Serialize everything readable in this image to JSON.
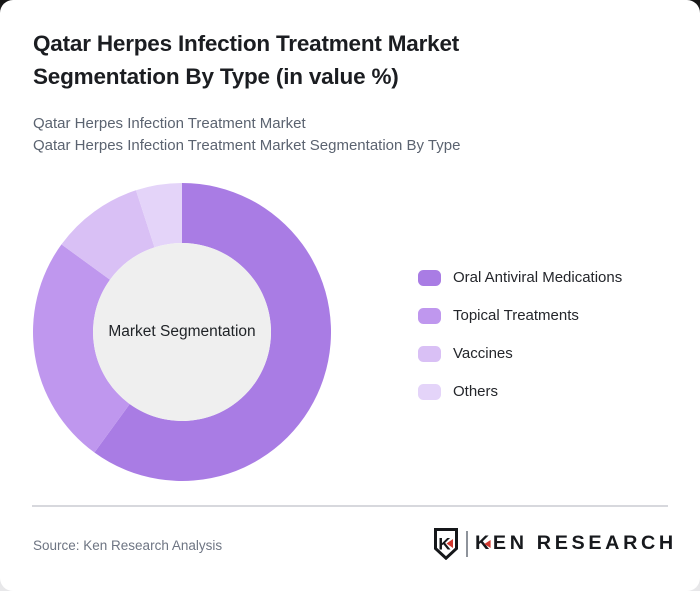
{
  "header": {
    "title": "Qatar Herpes Infection Treatment Market Segmentation By Type (in value %)",
    "subtitle_line1": "Qatar Herpes Infection Treatment Market",
    "subtitle_line2": "Qatar Herpes Infection Treatment Market Segmentation By Type"
  },
  "chart_data": {
    "type": "pie",
    "donut": true,
    "title": "Qatar Herpes Infection Treatment Market Segmentation By Type (in value %)",
    "center_label": "Market Segmentation",
    "center_fill": "#efefef",
    "start_angle_deg": 0,
    "direction": "clockwise",
    "inner_radius_ratio": 0.6,
    "legend_position": "right",
    "segments": [
      {
        "label": "Oral Antiviral Medications",
        "value_pct": 60,
        "color": "#a97ce4"
      },
      {
        "label": "Topical Treatments",
        "value_pct": 25,
        "color": "#bf97ee"
      },
      {
        "label": "Vaccines",
        "value_pct": 10,
        "color": "#d9c0f5"
      },
      {
        "label": "Others",
        "value_pct": 5,
        "color": "#e4d4f9"
      }
    ]
  },
  "footer": {
    "source": "Source: Ken Research Analysis",
    "logo": {
      "badge_letter": "K",
      "wordmark_first_letter": "K",
      "wordmark_rest": "EN RESEARCH",
      "accent_color": "#d2382f"
    }
  }
}
